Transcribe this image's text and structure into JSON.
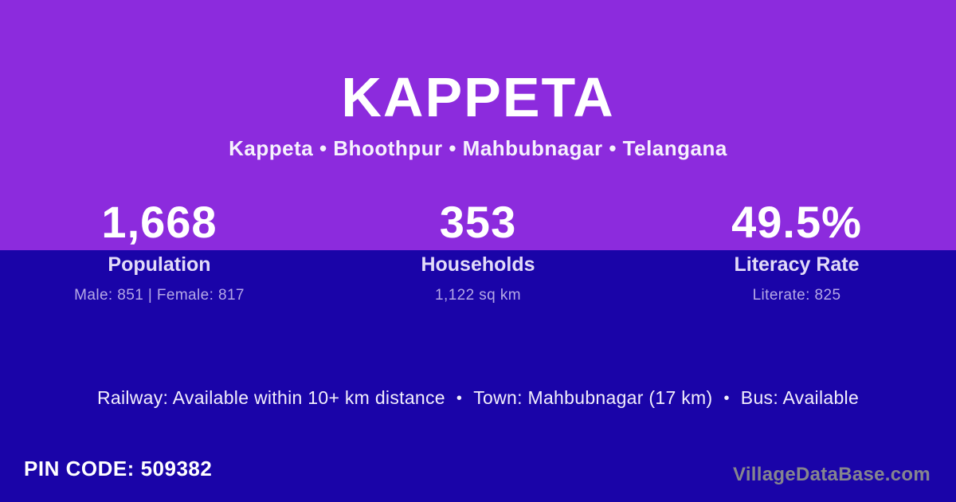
{
  "page": {
    "title": "KAPPETA",
    "breadcrumb": "Kappeta • Bhoothpur • Mahbubnagar • Telangana",
    "colors": {
      "top_background": "#8C2BDD",
      "bottom_background": "#1A04A8",
      "text_primary": "#FFFFFF",
      "label_text": "#E2DBF8",
      "detail_text": "#B5A9E6",
      "watermark_text": "#85858E"
    }
  },
  "stats": [
    {
      "value": "1,668",
      "label": "Population",
      "detail": "Male: 851 | Female: 817"
    },
    {
      "value": "353",
      "label": "Households",
      "detail": "1,122 sq km"
    },
    {
      "value": "49.5%",
      "label": "Literacy Rate",
      "detail": "Literate: 825"
    }
  ],
  "transport": {
    "railway": "Railway: Available within 10+ km distance",
    "town": "Town: Mahbubnagar (17 km)",
    "bus": "Bus: Available",
    "separator": "•"
  },
  "footer": {
    "pin_code": "PIN CODE: 509382",
    "watermark": "VillageDataBase.com"
  }
}
